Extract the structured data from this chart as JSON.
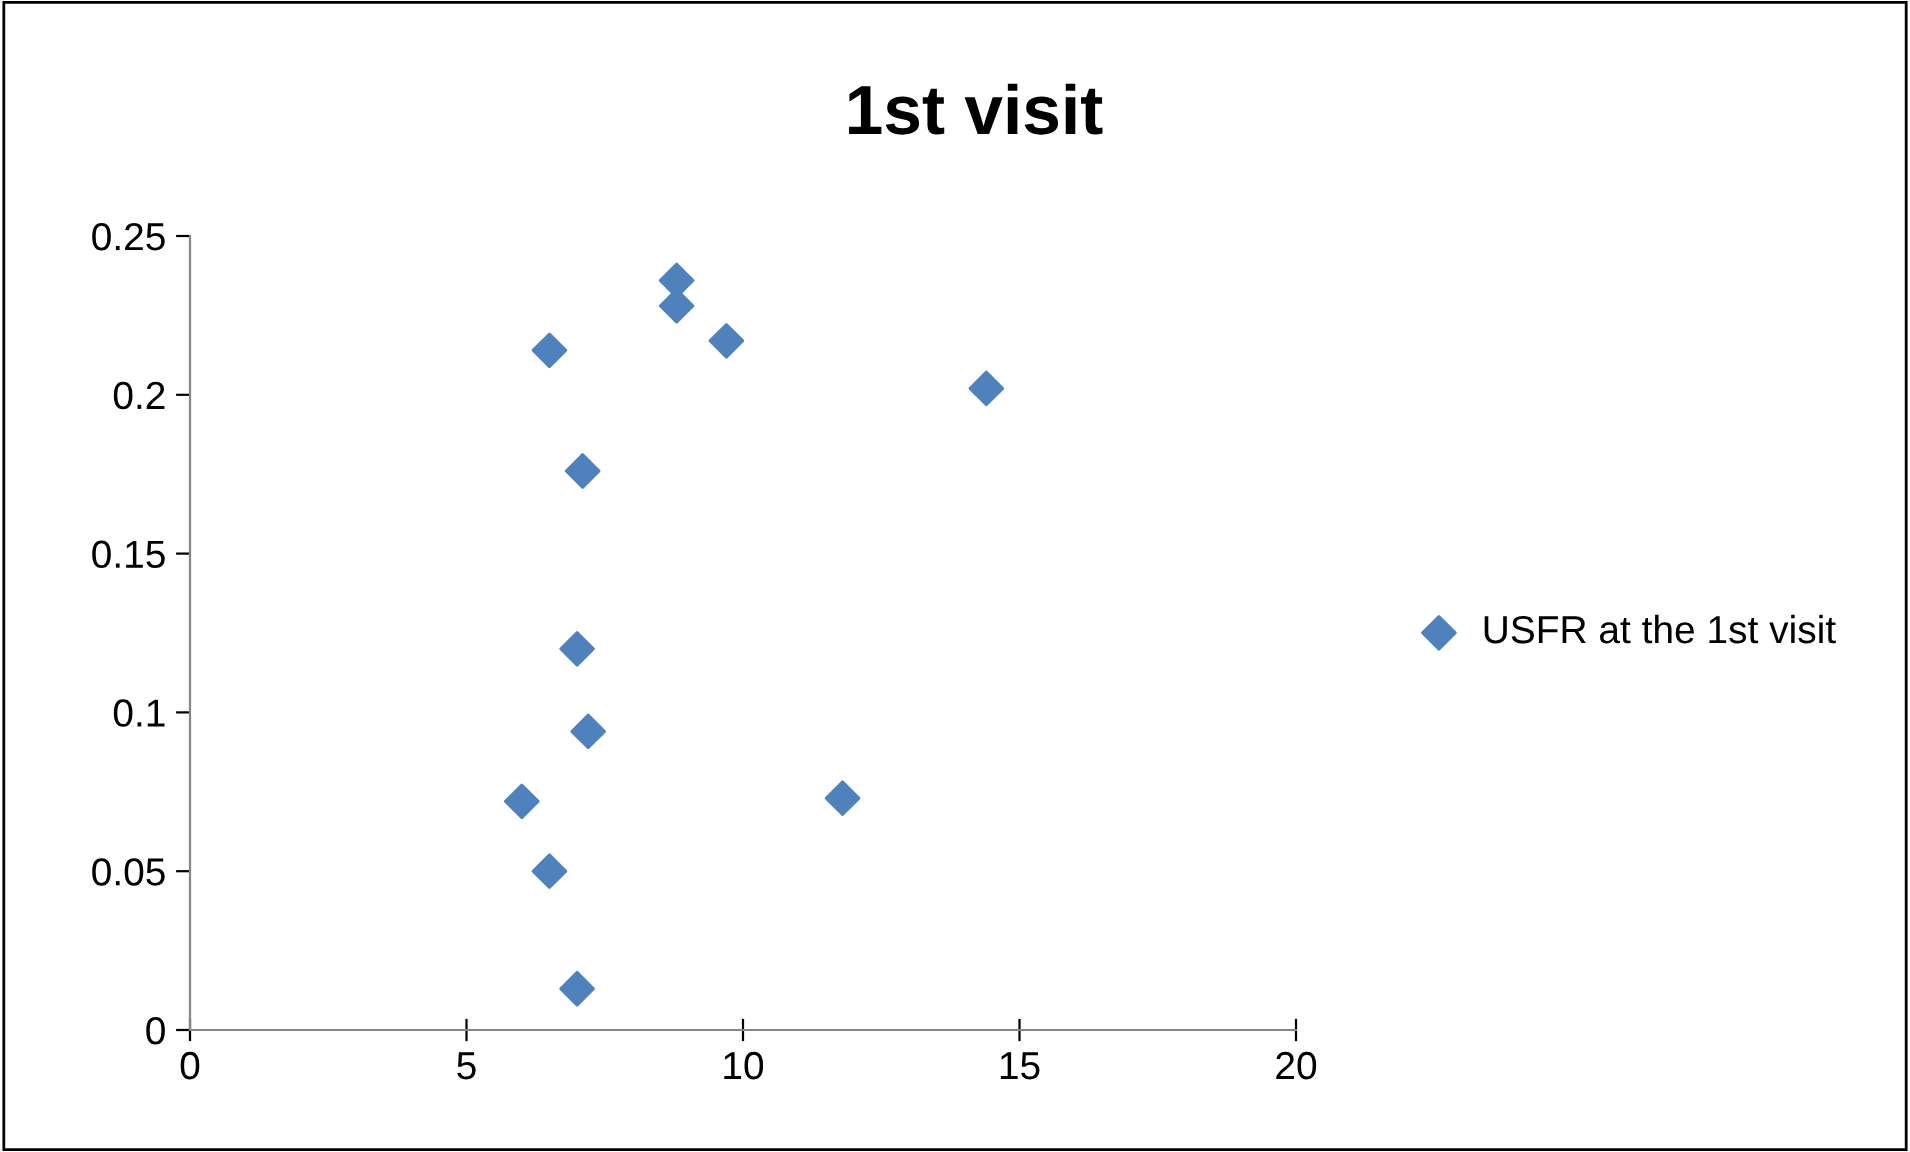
{
  "chart_data": {
    "type": "scatter",
    "title": "1st visit",
    "series": [
      {
        "name": "USFR at the 1st visit",
        "color": "#4f81bd",
        "x": [
          8.8,
          8.8,
          9.7,
          6.5,
          14.4,
          7.1,
          7.0,
          7.2,
          6.0,
          11.8,
          6.5,
          7.0
        ],
        "values": [
          0.236,
          0.228,
          0.217,
          0.214,
          0.202,
          0.176,
          0.12,
          0.094,
          0.072,
          0.073,
          0.05,
          0.013
        ]
      }
    ],
    "xlim": [
      0,
      20
    ],
    "xticks": [
      0,
      5,
      10,
      15,
      20
    ],
    "ylim": [
      0,
      0.25
    ],
    "yticks": [
      0,
      0.05,
      0.1,
      0.15,
      0.2,
      0.25
    ],
    "grid": false,
    "legend": "right",
    "marker": "diamond"
  }
}
